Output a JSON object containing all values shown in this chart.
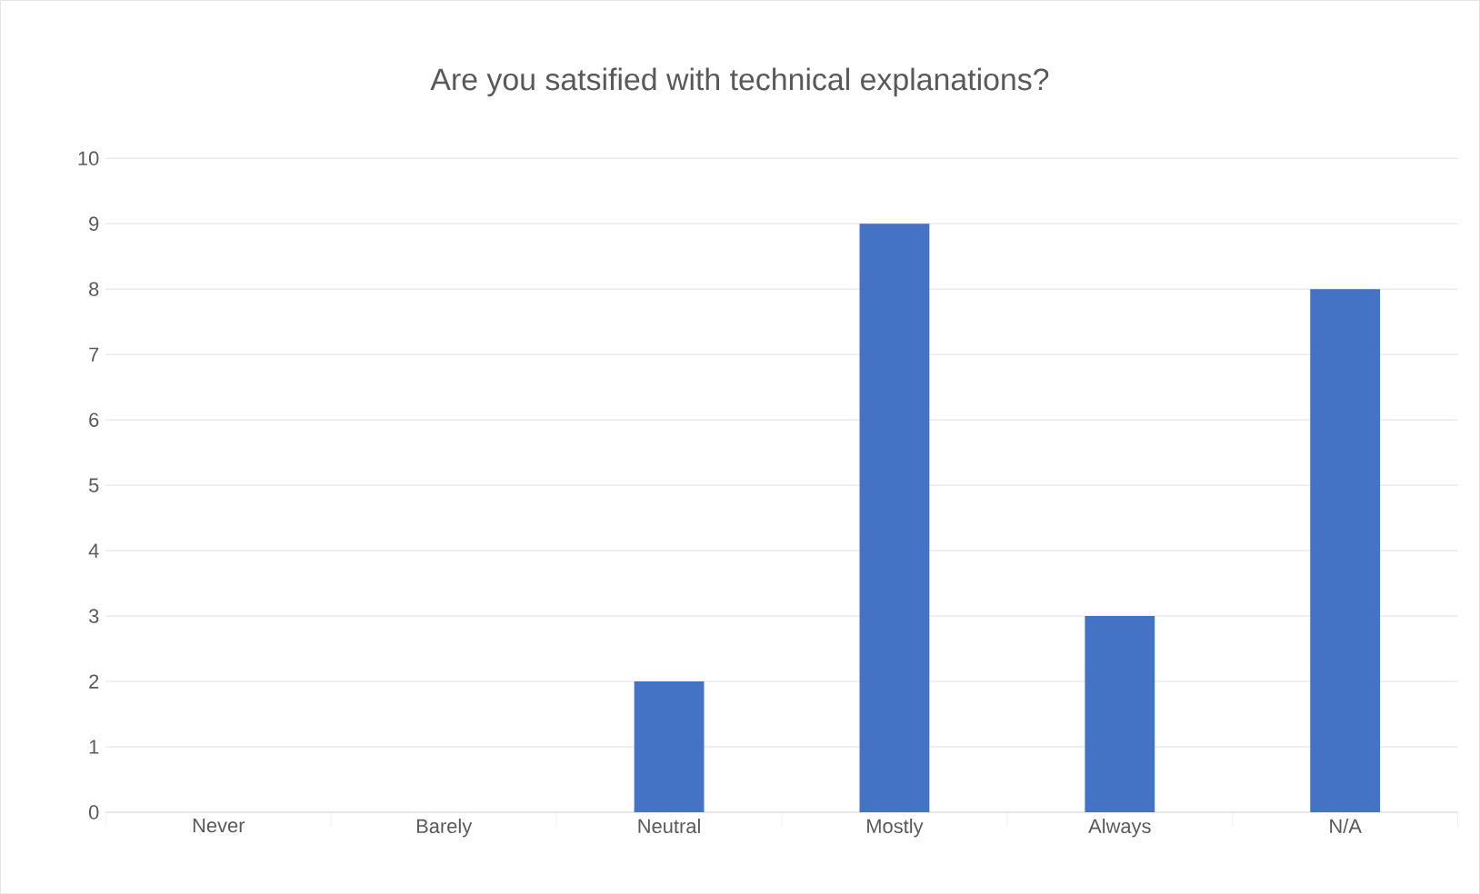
{
  "chart_data": {
    "type": "bar",
    "title": "Are you satsified with technical explanations?",
    "categories": [
      "Never",
      "Barely",
      "Neutral",
      "Mostly",
      "Always",
      "N/A"
    ],
    "values": [
      0,
      0,
      2,
      9,
      3,
      8
    ],
    "color": "#4472c4",
    "ylim": [
      0,
      10
    ],
    "yticks": [
      0,
      1,
      2,
      3,
      4,
      5,
      6,
      7,
      8,
      9,
      10
    ],
    "grid": "y"
  }
}
